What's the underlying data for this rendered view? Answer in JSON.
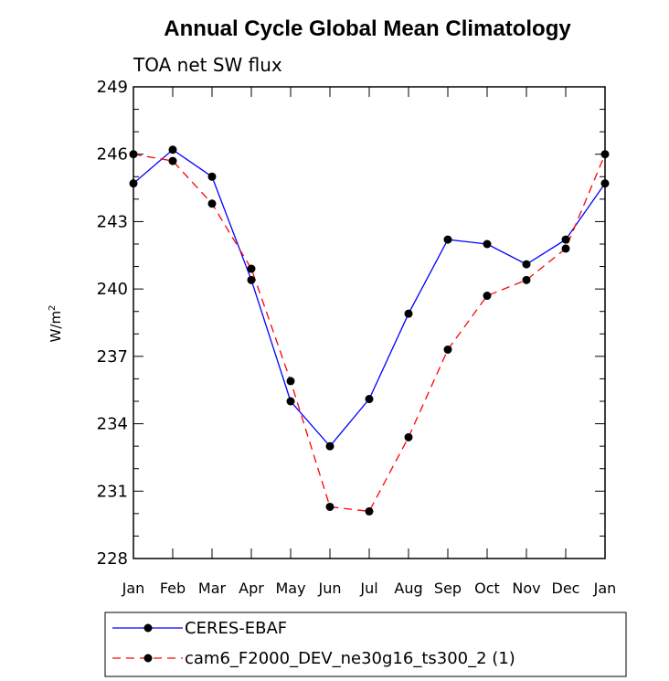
{
  "chart_data": {
    "type": "line",
    "title": "Annual Cycle Global Mean Climatology",
    "subtitle": "TOA net SW flux",
    "ylabel": "W/m",
    "ylabel_superscript": "2",
    "ylim": [
      228,
      249
    ],
    "yticks": [
      228,
      231,
      234,
      237,
      240,
      243,
      246,
      249
    ],
    "categories": [
      "Jan",
      "Feb",
      "Mar",
      "Apr",
      "May",
      "Jun",
      "Jul",
      "Aug",
      "Sep",
      "Oct",
      "Nov",
      "Dec",
      "Jan"
    ],
    "series": [
      {
        "name": "CERES-EBAF",
        "color": "#0000ff",
        "dash": "solid",
        "values": [
          244.7,
          246.2,
          245.0,
          240.4,
          235.0,
          233.0,
          235.1,
          238.9,
          242.2,
          242.0,
          241.1,
          242.2,
          244.7
        ]
      },
      {
        "name": "cam6_F2000_DEV_ne30g16_ts300_2 (1)",
        "color": "#ff0000",
        "dash": "dashed",
        "values": [
          246.0,
          245.7,
          243.8,
          240.9,
          235.9,
          230.3,
          230.1,
          233.4,
          237.3,
          239.7,
          240.4,
          241.8,
          246.0
        ]
      }
    ],
    "grid": false,
    "legend_position": "bottom"
  }
}
